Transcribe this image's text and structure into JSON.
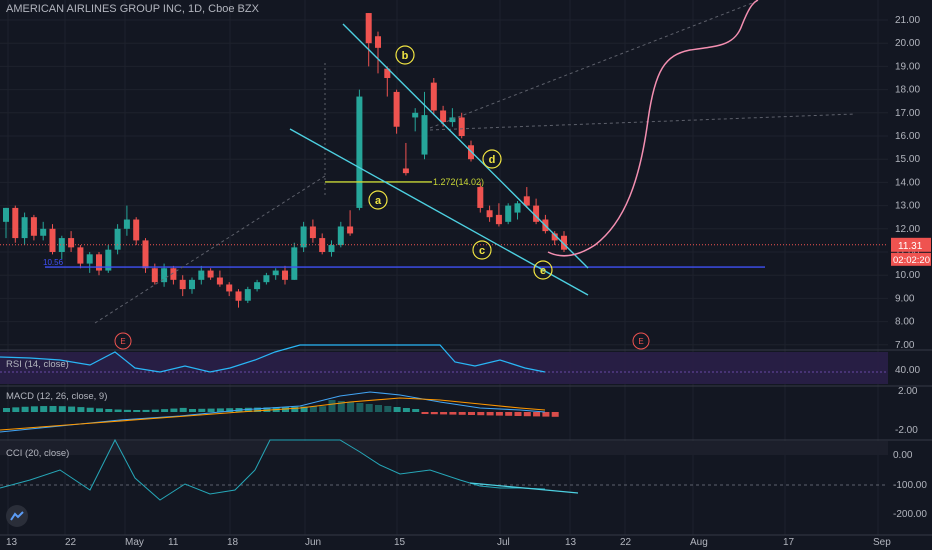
{
  "header": {
    "symbol_name": "AMERICAN AIRLINES GROUP INC",
    "interval": "1D",
    "exchange": "Cboe BZX"
  },
  "price_axis": {
    "ticks": [
      "21.00",
      "20.00",
      "19.00",
      "18.00",
      "17.00",
      "16.00",
      "15.00",
      "14.00",
      "13.00",
      "12.00",
      "11.00",
      "10.00",
      "9.00",
      "8.00",
      "7.00"
    ],
    "last_price": "11.31",
    "countdown": "02:02:20"
  },
  "time_axis": {
    "ticks": [
      "13",
      "22",
      "May",
      "11",
      "18",
      "Jun",
      "15",
      "Jul",
      "13",
      "22",
      "Aug",
      "17",
      "Sep"
    ]
  },
  "indicators": {
    "rsi": {
      "label": "RSI (14, close)",
      "ticks": [
        "40.00"
      ]
    },
    "macd": {
      "label": "MACD (12, 26, close, 9)",
      "ticks": [
        "2.00",
        "-2.00"
      ]
    },
    "cci": {
      "label": "CCI (20, close)",
      "ticks": [
        "0.00",
        "-100.00",
        "-200.00"
      ]
    }
  },
  "annotations": {
    "waves": [
      "a",
      "b",
      "c",
      "d",
      "e"
    ],
    "fib_label": "1.272(14.02)",
    "level_label": "10.56",
    "earnings_marker": "E"
  },
  "colors": {
    "background": "#131722",
    "up": "#26a69a",
    "down": "#ef5350",
    "trendline": "#4dd0e1",
    "projection": "#f48fb1",
    "wave_label": "#f0e442",
    "support": "#3f51f5",
    "rsi_band": "#2a1f48",
    "rsi_line": "#29b6f6",
    "macd_line": "#42a5f5",
    "signal_line": "#ff9800"
  },
  "chart_data": {
    "type": "candlestick",
    "title": "AMERICAN AIRLINES GROUP INC, 1D, Cboe BZX",
    "ylim": [
      7,
      21.5
    ],
    "y_scale": "linear",
    "grid": true,
    "candles": [
      {
        "d": "Apr 13",
        "o": 12.3,
        "h": 12.9,
        "l": 11.6,
        "c": 12.9
      },
      {
        "d": "Apr 14",
        "o": 12.9,
        "h": 13.0,
        "l": 11.4,
        "c": 11.6
      },
      {
        "d": "Apr 15",
        "o": 11.6,
        "h": 12.7,
        "l": 11.3,
        "c": 12.5
      },
      {
        "d": "Apr 16",
        "o": 12.5,
        "h": 12.6,
        "l": 11.5,
        "c": 11.7
      },
      {
        "d": "Apr 17",
        "o": 11.7,
        "h": 12.3,
        "l": 11.5,
        "c": 12.0
      },
      {
        "d": "Apr 20",
        "o": 12.0,
        "h": 12.2,
        "l": 10.9,
        "c": 11.0
      },
      {
        "d": "Apr 21",
        "o": 11.0,
        "h": 11.7,
        "l": 10.7,
        "c": 11.6
      },
      {
        "d": "Apr 22",
        "o": 11.6,
        "h": 11.9,
        "l": 11.0,
        "c": 11.2
      },
      {
        "d": "Apr 23",
        "o": 11.2,
        "h": 11.3,
        "l": 10.3,
        "c": 10.5
      },
      {
        "d": "Apr 24",
        "o": 10.5,
        "h": 11.0,
        "l": 10.1,
        "c": 10.9
      },
      {
        "d": "Apr 27",
        "o": 10.9,
        "h": 11.0,
        "l": 10.0,
        "c": 10.2
      },
      {
        "d": "Apr 28",
        "o": 10.2,
        "h": 11.3,
        "l": 10.1,
        "c": 11.1
      },
      {
        "d": "Apr 29",
        "o": 11.1,
        "h": 12.2,
        "l": 10.9,
        "c": 12.0
      },
      {
        "d": "Apr 30",
        "o": 12.0,
        "h": 13.0,
        "l": 11.7,
        "c": 12.4
      },
      {
        "d": "May 1",
        "o": 12.4,
        "h": 12.5,
        "l": 11.3,
        "c": 11.5
      },
      {
        "d": "May 4",
        "o": 11.5,
        "h": 11.6,
        "l": 10.1,
        "c": 10.3
      },
      {
        "d": "May 5",
        "o": 10.3,
        "h": 10.5,
        "l": 9.6,
        "c": 9.7
      },
      {
        "d": "May 6",
        "o": 9.7,
        "h": 10.5,
        "l": 9.5,
        "c": 10.3
      },
      {
        "d": "May 7",
        "o": 10.3,
        "h": 10.4,
        "l": 9.6,
        "c": 9.8
      },
      {
        "d": "May 8",
        "o": 9.8,
        "h": 10.0,
        "l": 9.1,
        "c": 9.4
      },
      {
        "d": "May 11",
        "o": 9.4,
        "h": 9.9,
        "l": 9.2,
        "c": 9.8
      },
      {
        "d": "May 12",
        "o": 9.8,
        "h": 10.4,
        "l": 9.6,
        "c": 10.2
      },
      {
        "d": "May 13",
        "o": 10.2,
        "h": 10.3,
        "l": 9.8,
        "c": 9.9
      },
      {
        "d": "May 14",
        "o": 9.9,
        "h": 10.2,
        "l": 9.5,
        "c": 9.6
      },
      {
        "d": "May 15",
        "o": 9.6,
        "h": 9.7,
        "l": 9.1,
        "c": 9.3
      },
      {
        "d": "May 18",
        "o": 9.3,
        "h": 9.4,
        "l": 8.6,
        "c": 8.9
      },
      {
        "d": "May 19",
        "o": 8.9,
        "h": 9.5,
        "l": 8.8,
        "c": 9.4
      },
      {
        "d": "May 20",
        "o": 9.4,
        "h": 9.8,
        "l": 9.3,
        "c": 9.7
      },
      {
        "d": "May 21",
        "o": 9.7,
        "h": 10.1,
        "l": 9.6,
        "c": 10.0
      },
      {
        "d": "May 22",
        "o": 10.0,
        "h": 10.3,
        "l": 9.8,
        "c": 10.2
      },
      {
        "d": "May 26",
        "o": 10.2,
        "h": 10.4,
        "l": 9.6,
        "c": 9.8
      },
      {
        "d": "May 27",
        "o": 9.8,
        "h": 11.4,
        "l": 9.8,
        "c": 11.2
      },
      {
        "d": "May 28",
        "o": 11.2,
        "h": 12.3,
        "l": 11.0,
        "c": 12.1
      },
      {
        "d": "May 29",
        "o": 12.1,
        "h": 12.4,
        "l": 11.4,
        "c": 11.6
      },
      {
        "d": "Jun 1",
        "o": 11.6,
        "h": 11.8,
        "l": 10.9,
        "c": 11.0
      },
      {
        "d": "Jun 2",
        "o": 11.0,
        "h": 11.5,
        "l": 10.8,
        "c": 11.3
      },
      {
        "d": "Jun 3",
        "o": 11.3,
        "h": 12.3,
        "l": 11.2,
        "c": 12.1
      },
      {
        "d": "Jun 4",
        "o": 12.1,
        "h": 12.8,
        "l": 11.7,
        "c": 11.8
      },
      {
        "d": "Jun 5",
        "o": 12.9,
        "h": 18.0,
        "l": 12.8,
        "c": 17.7
      },
      {
        "d": "Jun 8",
        "o": 21.3,
        "h": 21.3,
        "l": 19.0,
        "c": 20.0
      },
      {
        "d": "Jun 9",
        "o": 20.3,
        "h": 20.5,
        "l": 18.7,
        "c": 19.8
      },
      {
        "d": "Jun 10",
        "o": 18.9,
        "h": 19.0,
        "l": 17.7,
        "c": 18.5
      },
      {
        "d": "Jun 11",
        "o": 17.9,
        "h": 18.0,
        "l": 16.1,
        "c": 16.4
      },
      {
        "d": "Jun 12",
        "o": 14.6,
        "h": 15.7,
        "l": 14.3,
        "c": 14.4
      },
      {
        "d": "Jun 15",
        "o": 16.8,
        "h": 17.2,
        "l": 16.2,
        "c": 17.0
      },
      {
        "d": "Jun 16",
        "o": 15.2,
        "h": 17.9,
        "l": 15.0,
        "c": 16.9
      },
      {
        "d": "Jun 17",
        "o": 18.3,
        "h": 18.5,
        "l": 16.9,
        "c": 17.1
      },
      {
        "d": "Jun 18",
        "o": 17.1,
        "h": 17.3,
        "l": 16.4,
        "c": 16.6
      },
      {
        "d": "Jun 19",
        "o": 16.6,
        "h": 17.2,
        "l": 16.4,
        "c": 16.8
      },
      {
        "d": "Jun 22",
        "o": 16.8,
        "h": 17.0,
        "l": 15.9,
        "c": 16.0
      },
      {
        "d": "Jun 23",
        "o": 15.6,
        "h": 15.8,
        "l": 14.9,
        "c": 15.0
      },
      {
        "d": "Jun 24",
        "o": 13.8,
        "h": 14.0,
        "l": 12.7,
        "c": 12.9
      },
      {
        "d": "Jun 25",
        "o": 12.8,
        "h": 13.0,
        "l": 12.3,
        "c": 12.5
      },
      {
        "d": "Jun 26",
        "o": 12.6,
        "h": 13.1,
        "l": 12.1,
        "c": 12.2
      },
      {
        "d": "Jun 29",
        "o": 12.3,
        "h": 13.1,
        "l": 12.2,
        "c": 13.0
      },
      {
        "d": "Jun 30",
        "o": 12.7,
        "h": 13.2,
        "l": 12.4,
        "c": 13.1
      },
      {
        "d": "Jul 1",
        "o": 13.4,
        "h": 13.8,
        "l": 12.9,
        "c": 13.0
      },
      {
        "d": "Jul 2",
        "o": 13.0,
        "h": 13.3,
        "l": 12.2,
        "c": 12.3
      },
      {
        "d": "Jul 6",
        "o": 12.4,
        "h": 12.6,
        "l": 11.8,
        "c": 11.9
      },
      {
        "d": "Jul 7",
        "o": 11.8,
        "h": 11.9,
        "l": 11.3,
        "c": 11.5
      },
      {
        "d": "Jul 8",
        "o": 11.7,
        "h": 11.9,
        "l": 11.0,
        "c": 11.1
      }
    ],
    "lines": [
      {
        "name": "trend_upper",
        "points": [
          [
            "Jun 5",
            20.9
          ],
          [
            "Jul 17",
            10.6
          ]
        ]
      },
      {
        "name": "trend_lower",
        "points": [
          [
            "May 29",
            16.7
          ],
          [
            "Jul 17",
            9.4
          ]
        ]
      },
      {
        "name": "support",
        "value": 10.35
      },
      {
        "name": "fib_1.272",
        "value": 14.02
      }
    ]
  }
}
